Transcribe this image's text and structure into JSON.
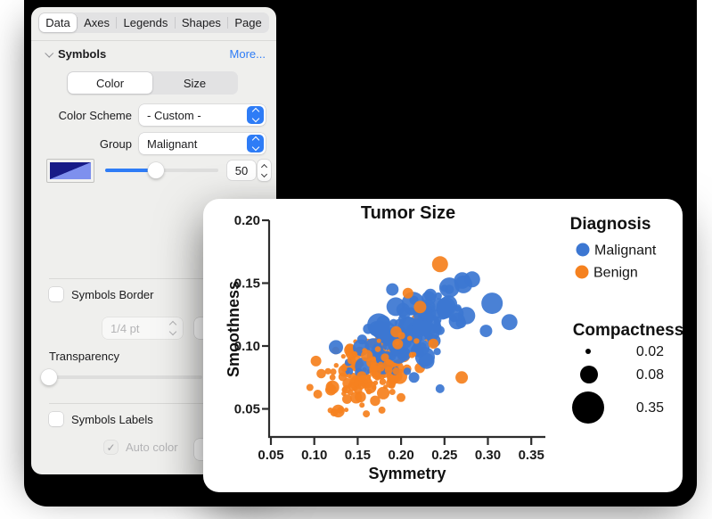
{
  "inspector": {
    "tabs": [
      "Data",
      "Axes",
      "Legends",
      "Shapes",
      "Page"
    ],
    "selected_tab": "Data",
    "section": {
      "title": "Symbols",
      "more_label": "More...",
      "more_color": "#2e7cf6"
    },
    "segmented": {
      "options": [
        "Color",
        "Size"
      ],
      "selected": "Color"
    },
    "color_scheme": {
      "label": "Color Scheme",
      "value": "- Custom -"
    },
    "group": {
      "label": "Group",
      "value": "Malignant"
    },
    "symbol_size": {
      "value": "50",
      "slider_pct": 45
    },
    "border": {
      "label": "Symbols Border",
      "checked": false,
      "width_value": "1/4 pt"
    },
    "transparency": {
      "label": "Transparency",
      "slider_pct": 0
    },
    "labels": {
      "label": "Symbols Labels",
      "checked": false
    },
    "auto_color": {
      "label": "Auto color",
      "checked": true,
      "checkmark": "✓"
    },
    "accent_color": "#2e7cf6",
    "swatch": {
      "dark": "#171b87",
      "light": "#7e90ee"
    }
  },
  "chart_data": {
    "type": "scatter",
    "title": "Tumor Size",
    "xlabel": "Symmetry",
    "ylabel": "Smoothness",
    "xlim": [
      0.05,
      0.38
    ],
    "ylim": [
      0.04,
      0.2
    ],
    "x_tick_labels": [
      "0.05",
      "0.10",
      "0.15",
      "0.20",
      "0.25",
      "0.30",
      "0.35"
    ],
    "y_tick_labels": [
      "0.20",
      "0.15",
      "0.10",
      "0.05"
    ],
    "grid": false,
    "legend": {
      "title": "Diagnosis",
      "position": "right",
      "items": [
        {
          "label": "Malignant",
          "color": "#3c77d2"
        },
        {
          "label": "Benign",
          "color": "#f5811f"
        }
      ]
    },
    "size_legend": {
      "title": "Compactness",
      "color": "#000000",
      "entries": [
        {
          "value": "0.02",
          "r": 3
        },
        {
          "value": "0.08",
          "r": 10
        },
        {
          "value": "0.35",
          "r": 18
        }
      ]
    },
    "series": [
      {
        "name": "Malignant",
        "color": "#3c77d2"
      },
      {
        "name": "Benign",
        "color": "#f5811f"
      }
    ],
    "point_opacity": 0.93,
    "seed": 42,
    "clusters": [
      {
        "group": "Benign",
        "n": 135,
        "x_mean": 0.165,
        "x_sd": 0.03,
        "y_intercept": 0.0555,
        "slope": 0.34,
        "x0": 0.09,
        "y_sd": 0.0115,
        "r_min": 2.5,
        "r_max": 8.5
      },
      {
        "group": "Malignant",
        "n": 118,
        "x_mean": 0.214,
        "x_sd": 0.032,
        "y_intercept": 0.071,
        "slope": 0.32,
        "x0": 0.09,
        "y_sd": 0.0125,
        "r_min": 4,
        "r_max": 13
      },
      {
        "group": "Benign",
        "n": 42,
        "x_mean": 0.172,
        "x_sd": 0.028,
        "y_intercept": 0.0555,
        "slope": 0.34,
        "x0": 0.09,
        "y_sd": 0.011,
        "r_min": 2.5,
        "r_max": 7
      }
    ],
    "outliers": [
      {
        "group": "Malignant",
        "x": 0.305,
        "y": 0.134,
        "r": 12
      },
      {
        "group": "Malignant",
        "x": 0.325,
        "y": 0.119,
        "r": 9
      },
      {
        "group": "Malignant",
        "x": 0.282,
        "y": 0.153,
        "r": 9
      },
      {
        "group": "Malignant",
        "x": 0.272,
        "y": 0.149,
        "r": 10
      },
      {
        "group": "Malignant",
        "x": 0.252,
        "y": 0.131,
        "r": 11
      },
      {
        "group": "Malignant",
        "x": 0.19,
        "y": 0.145,
        "r": 7
      },
      {
        "group": "Malignant",
        "x": 0.232,
        "y": 0.138,
        "r": 8
      },
      {
        "group": "Malignant",
        "x": 0.245,
        "y": 0.066,
        "r": 5
      },
      {
        "group": "Malignant",
        "x": 0.215,
        "y": 0.075,
        "r": 6
      },
      {
        "group": "Malignant",
        "x": 0.125,
        "y": 0.099,
        "r": 8
      },
      {
        "group": "Malignant",
        "x": 0.298,
        "y": 0.112,
        "r": 7
      },
      {
        "group": "Benign",
        "x": 0.245,
        "y": 0.165,
        "r": 9
      },
      {
        "group": "Benign",
        "x": 0.208,
        "y": 0.142,
        "r": 6
      },
      {
        "group": "Benign",
        "x": 0.222,
        "y": 0.131,
        "r": 7
      },
      {
        "group": "Benign",
        "x": 0.27,
        "y": 0.075,
        "r": 7
      },
      {
        "group": "Benign",
        "x": 0.16,
        "y": 0.046,
        "r": 4
      },
      {
        "group": "Benign",
        "x": 0.155,
        "y": 0.053,
        "r": 3
      },
      {
        "group": "Benign",
        "x": 0.095,
        "y": 0.067,
        "r": 4
      },
      {
        "group": "Benign",
        "x": 0.102,
        "y": 0.088,
        "r": 6
      },
      {
        "group": "Benign",
        "x": 0.2,
        "y": 0.059,
        "r": 5
      },
      {
        "group": "Benign",
        "x": 0.178,
        "y": 0.049,
        "r": 4
      }
    ]
  }
}
